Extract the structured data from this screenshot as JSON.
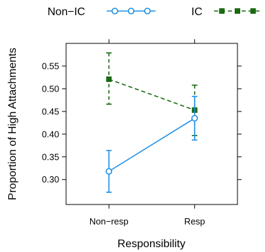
{
  "chart_data": {
    "type": "line",
    "categories": [
      "Non−resp",
      "Resp"
    ],
    "xlabel": "Responsibility",
    "ylabel": "Proportion of High Attachments",
    "ylim": [
      0.245,
      0.6
    ],
    "yticks": [
      "0.30",
      "0.35",
      "0.40",
      "0.45",
      "0.50",
      "0.55"
    ],
    "grid": false,
    "legend_position": "top",
    "series": [
      {
        "name": "Non−IC",
        "values": [
          0.318,
          0.435
        ],
        "lower": [
          0.272,
          0.387
        ],
        "upper": [
          0.364,
          0.483
        ],
        "color": "#1f8fe6",
        "marker": "circle",
        "line": "solid"
      },
      {
        "name": "IC",
        "values": [
          0.521,
          0.453
        ],
        "lower": [
          0.466,
          0.397
        ],
        "upper": [
          0.579,
          0.508
        ],
        "color": "#1a6a12",
        "marker": "square",
        "line": "dashed"
      }
    ]
  }
}
